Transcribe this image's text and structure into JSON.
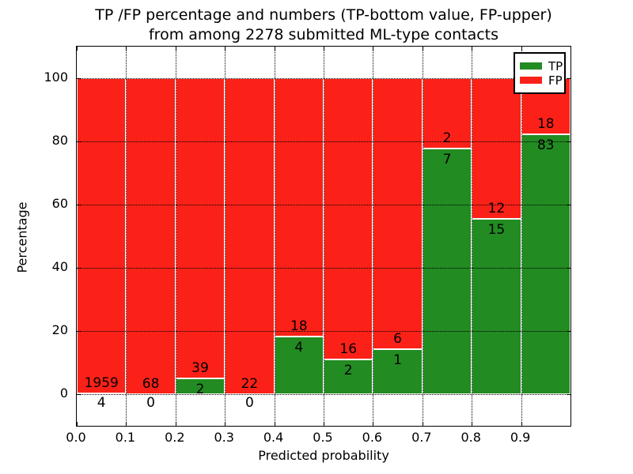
{
  "title": {
    "line1": "TP /FP percentage and numbers (TP-bottom value, FP-upper)",
    "line2": "from among 2278 submitted ML-type contacts"
  },
  "axes": {
    "ylabel": "Percentage",
    "xlabel": "Predicted probability",
    "y_ticks": [
      0,
      20,
      40,
      60,
      80,
      100
    ],
    "x_tick_labels": [
      "0.0",
      "0.1",
      "0.2",
      "0.3",
      "0.4",
      "0.5",
      "0.6",
      "0.7",
      "0.8",
      "0.9"
    ],
    "x_tick_values": [
      0.0,
      0.1,
      0.2,
      0.3,
      0.4,
      0.5,
      0.6,
      0.7,
      0.8,
      0.9
    ]
  },
  "legend": {
    "items": [
      {
        "label": "TP",
        "color": "#228b22"
      },
      {
        "label": "FP",
        "color": "#fb2118"
      }
    ],
    "position": "upper right"
  },
  "colors": {
    "tp": "#228b22",
    "fp": "#fb2118",
    "bar_edge": "#ffffff",
    "grid": "#000000",
    "text": "#000000",
    "background": "#ffffff"
  },
  "chart_data": {
    "type": "bar",
    "stacked": true,
    "normalized_to_percent": true,
    "title": "TP /FP percentage and numbers (TP-bottom value, FP-upper) from among 2278 submitted ML-type contacts",
    "xlabel": "Predicted probability",
    "ylabel": "Percentage",
    "xlim": [
      0.0,
      1.0
    ],
    "ylim": [
      -10,
      110
    ],
    "grid": true,
    "legend_position": "upper right",
    "total_contacts": 2278,
    "categories": [
      "0.0-0.1",
      "0.1-0.2",
      "0.2-0.3",
      "0.3-0.4",
      "0.4-0.5",
      "0.5-0.6",
      "0.6-0.7",
      "0.7-0.8",
      "0.8-0.9",
      "0.9-1.0"
    ],
    "bins": [
      {
        "x0": 0.0,
        "x1": 0.1,
        "tp_count": 4,
        "fp_count": 1959,
        "tp_pct": 0.2,
        "fp_pct": 99.8,
        "tp_label_below_axis": true
      },
      {
        "x0": 0.1,
        "x1": 0.2,
        "tp_count": 0,
        "fp_count": 68,
        "tp_pct": 0.0,
        "fp_pct": 100.0,
        "tp_label_below_axis": true
      },
      {
        "x0": 0.2,
        "x1": 0.3,
        "tp_count": 2,
        "fp_count": 39,
        "tp_pct": 4.9,
        "fp_pct": 95.1,
        "tp_label_below_axis": false
      },
      {
        "x0": 0.3,
        "x1": 0.4,
        "tp_count": 0,
        "fp_count": 22,
        "tp_pct": 0.0,
        "fp_pct": 100.0,
        "tp_label_below_axis": true
      },
      {
        "x0": 0.4,
        "x1": 0.5,
        "tp_count": 4,
        "fp_count": 18,
        "tp_pct": 18.2,
        "fp_pct": 81.8,
        "tp_label_below_axis": false
      },
      {
        "x0": 0.5,
        "x1": 0.6,
        "tp_count": 2,
        "fp_count": 16,
        "tp_pct": 11.1,
        "fp_pct": 88.9,
        "tp_label_below_axis": false
      },
      {
        "x0": 0.6,
        "x1": 0.7,
        "tp_count": 1,
        "fp_count": 6,
        "tp_pct": 14.3,
        "fp_pct": 85.7,
        "tp_label_below_axis": false
      },
      {
        "x0": 0.7,
        "x1": 0.8,
        "tp_count": 7,
        "fp_count": 2,
        "tp_pct": 77.8,
        "fp_pct": 22.2,
        "tp_label_below_axis": false
      },
      {
        "x0": 0.8,
        "x1": 0.9,
        "tp_count": 15,
        "fp_count": 12,
        "tp_pct": 55.6,
        "fp_pct": 44.4,
        "tp_label_below_axis": false
      },
      {
        "x0": 0.9,
        "x1": 1.0,
        "tp_count": 83,
        "fp_count": 18,
        "tp_pct": 82.2,
        "fp_pct": 17.8,
        "tp_label_below_axis": false
      }
    ],
    "series": [
      {
        "name": "TP",
        "values_pct": [
          0.2,
          0.0,
          4.9,
          0.0,
          18.2,
          11.1,
          14.3,
          77.8,
          55.6,
          82.2
        ]
      },
      {
        "name": "FP",
        "values_pct": [
          99.8,
          100.0,
          95.1,
          100.0,
          81.8,
          88.9,
          85.7,
          22.2,
          44.4,
          17.8
        ]
      }
    ]
  }
}
